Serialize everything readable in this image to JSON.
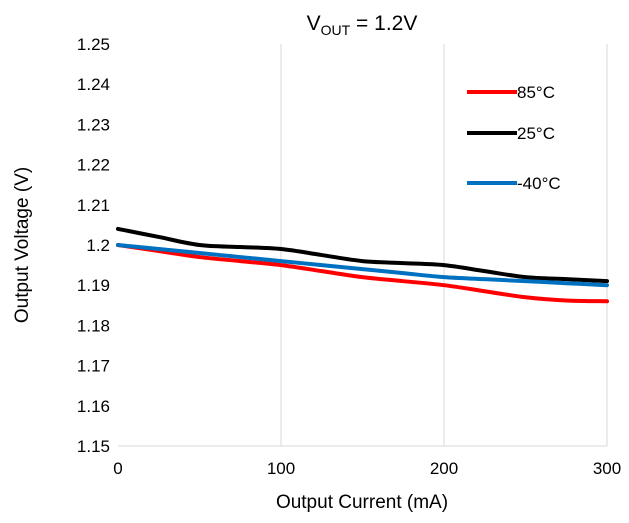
{
  "chart_data": {
    "type": "line",
    "title": {
      "main": "V",
      "sub": "OUT",
      "rest": " = 1.2V"
    },
    "xlabel": "Output Current (mA)",
    "ylabel": "Output Voltage (V)",
    "xlim": [
      0,
      300
    ],
    "ylim": [
      1.15,
      1.25
    ],
    "xticks": [
      0,
      100,
      200,
      300
    ],
    "yticks": [
      1.15,
      1.16,
      1.17,
      1.18,
      1.19,
      1.2,
      1.21,
      1.22,
      1.23,
      1.24,
      1.25
    ],
    "grid": {
      "x": true,
      "y": false
    },
    "legend_position": "top-right",
    "series": [
      {
        "name": "85°C",
        "color": "#ff0000",
        "x": [
          0,
          25,
          50,
          75,
          100,
          125,
          150,
          175,
          200,
          225,
          250,
          275,
          300
        ],
        "y": [
          1.2,
          1.1985,
          1.197,
          1.196,
          1.195,
          1.1935,
          1.192,
          1.191,
          1.19,
          1.1885,
          1.187,
          1.1862,
          1.186
        ]
      },
      {
        "name": "25°C",
        "color": "#000000",
        "x": [
          0,
          25,
          50,
          75,
          100,
          125,
          150,
          175,
          200,
          225,
          250,
          275,
          300
        ],
        "y": [
          1.204,
          1.202,
          1.2,
          1.1995,
          1.199,
          1.1975,
          1.196,
          1.1955,
          1.195,
          1.1935,
          1.192,
          1.1915,
          1.191
        ]
      },
      {
        "name": "-40°C",
        "color": "#0070c0",
        "x": [
          0,
          25,
          50,
          75,
          100,
          125,
          150,
          175,
          200,
          225,
          250,
          275,
          300
        ],
        "y": [
          1.2,
          1.199,
          1.198,
          1.197,
          1.196,
          1.195,
          1.194,
          1.193,
          1.192,
          1.1915,
          1.191,
          1.1905,
          1.19
        ]
      }
    ]
  }
}
